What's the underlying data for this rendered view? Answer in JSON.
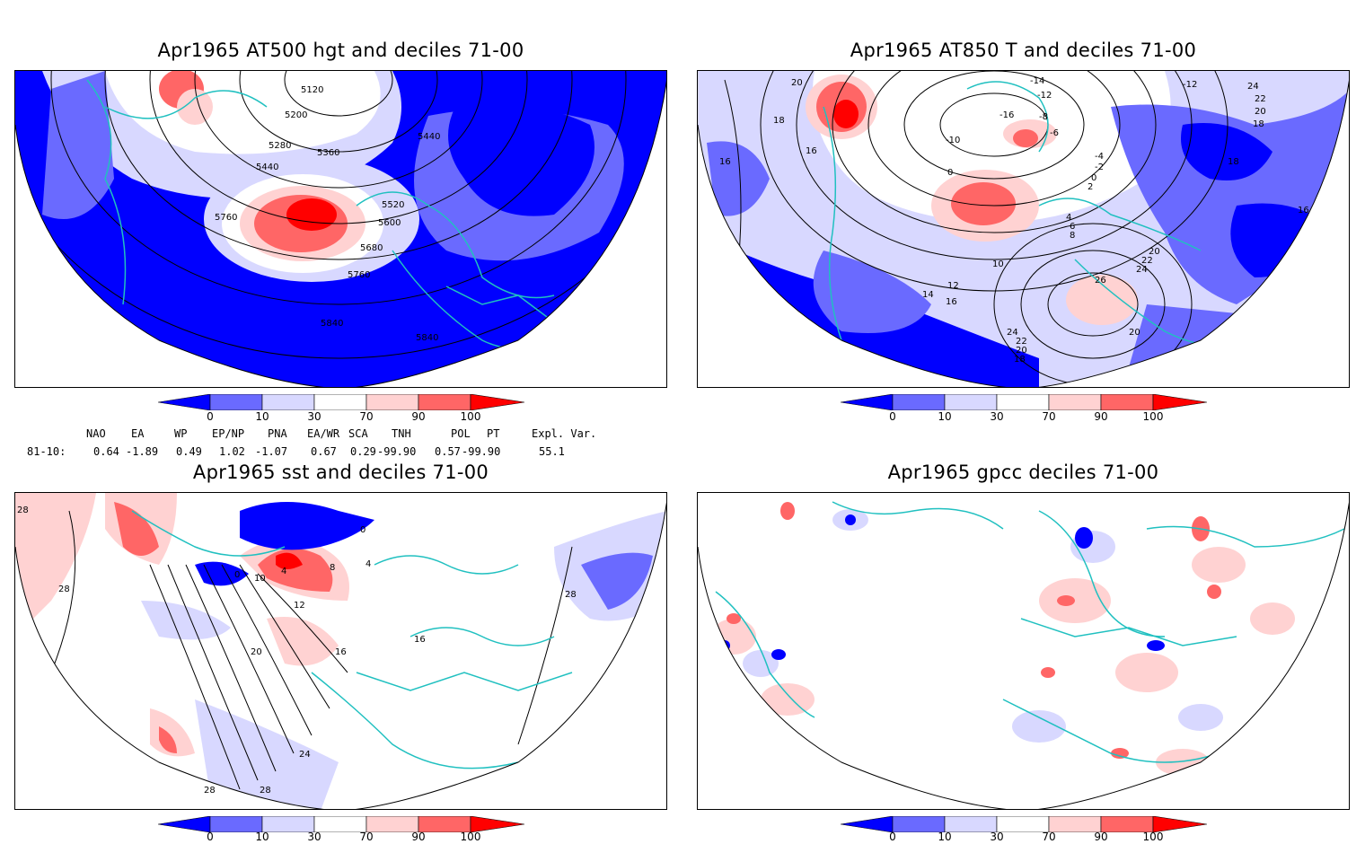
{
  "panels": [
    {
      "title": "Apr1965 AT500 hgt and deciles 71-00",
      "contour_labels": [
        "5120",
        "5200",
        "5280",
        "5360",
        "5440",
        "5440",
        "5520",
        "5600",
        "5680",
        "5760",
        "5760",
        "5840",
        "5840",
        "5680"
      ]
    },
    {
      "title": "Apr1965 AT850 T and deciles 71-00",
      "contour_labels": [
        "20",
        "18",
        "16",
        "16",
        "-14",
        "-12",
        "-16",
        "-10",
        "-8",
        "-6",
        "0",
        "-4",
        "-2",
        "0",
        "2",
        "4",
        "6",
        "8",
        "10",
        "12",
        "14",
        "16",
        "20",
        "22",
        "24",
        "26",
        "24",
        "22",
        "20",
        "18",
        "20",
        "24",
        "22",
        "20",
        "18",
        "18",
        "16",
        "-12"
      ]
    },
    {
      "title": "Apr1965 sst and deciles 71-00",
      "contour_labels": [
        "28",
        "28",
        "0",
        "10",
        "4",
        "8",
        "12",
        "16",
        "20",
        "24",
        "28",
        "28",
        "16",
        "0",
        "4",
        "28"
      ]
    },
    {
      "title": "Apr1965 gpcc deciles 71-00",
      "contour_labels": []
    }
  ],
  "colorbar": {
    "ticks": [
      "0",
      "10",
      "30",
      "70",
      "90",
      "100"
    ],
    "colors": [
      "#0000ff",
      "#6a6aff",
      "#d8d8ff",
      "#ffffff",
      "#ffd2d2",
      "#ff6666",
      "#ff0000"
    ]
  },
  "indices": {
    "headers": [
      "NAO",
      "EA",
      "WP",
      "EP/NP",
      "PNA",
      "EA/WR",
      "SCA",
      "TNH",
      "POL",
      "PT",
      "Expl. Var."
    ],
    "row_label": "81-10:",
    "values": [
      "0.64",
      "-1.89",
      "0.49",
      "1.02",
      "-1.07",
      "0.67",
      "0.29",
      "-99.90",
      "0.57",
      "-99.90",
      "55.1"
    ]
  },
  "colors": {
    "coast": "#20c0c0",
    "deep_blue": "#0000ff",
    "mid_blue": "#6a6aff",
    "light_blue": "#d8d8ff",
    "light_red": "#ffd2d2",
    "mid_red": "#ff6666",
    "deep_red": "#ff0000"
  }
}
